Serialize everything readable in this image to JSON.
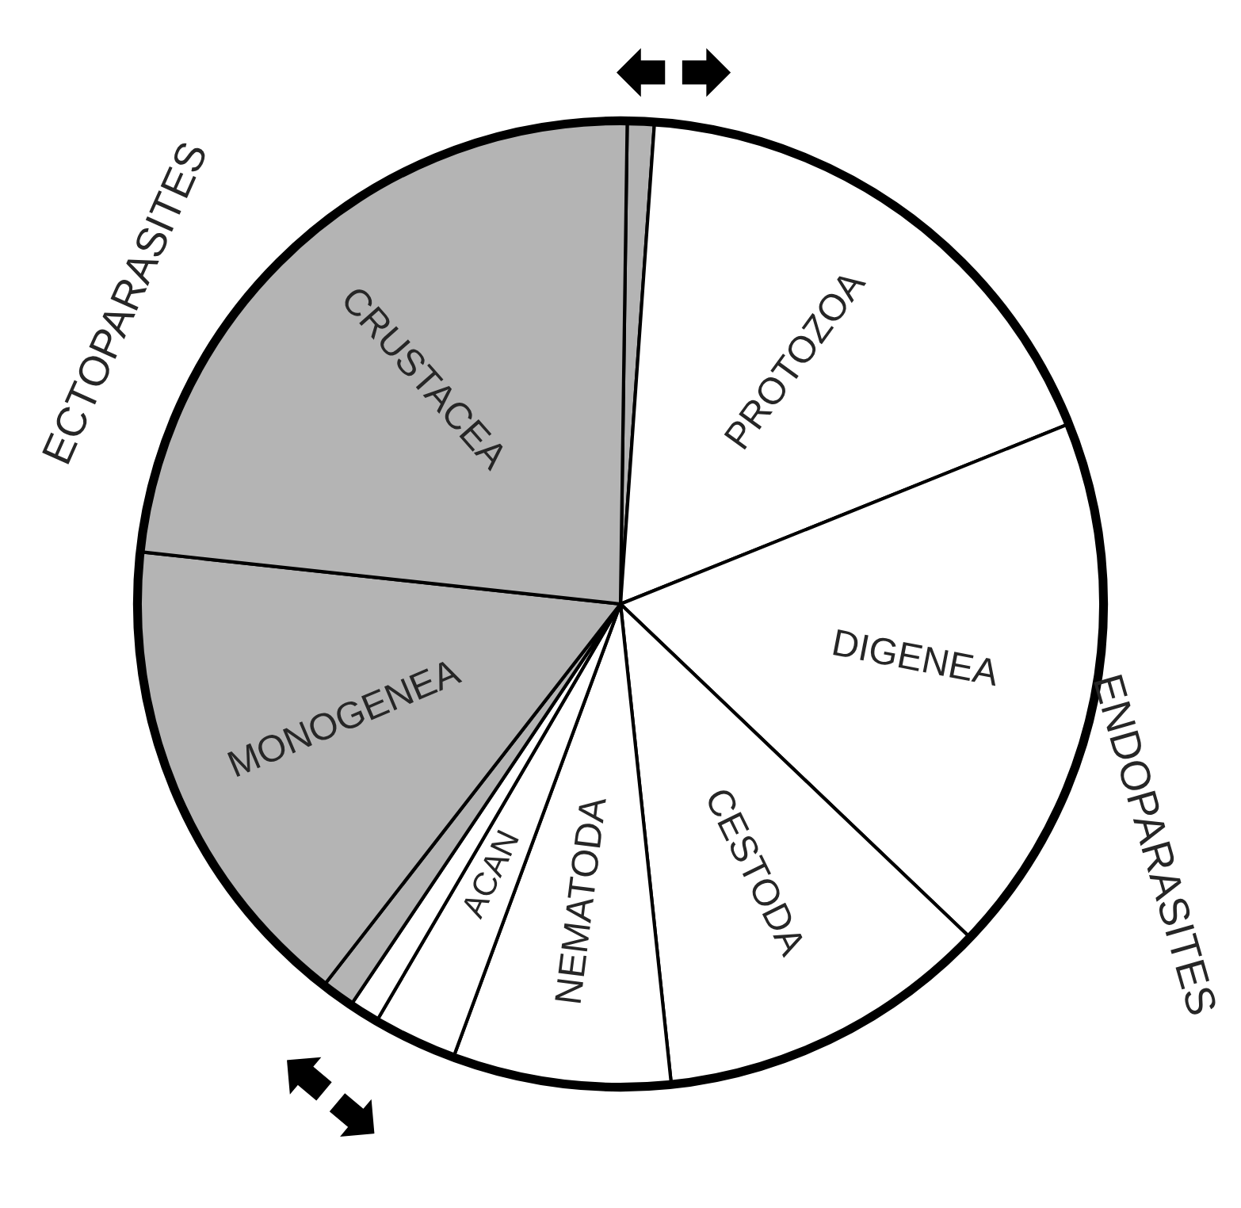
{
  "chart_data": {
    "type": "pie",
    "categories": [
      null,
      "PROTOZOA",
      "DIGENEA",
      "CESTODA",
      "NEMATODA",
      "ACAN",
      null,
      null,
      "MONOGENEA",
      "CRUSTACEA"
    ],
    "values": [
      0.9,
      17.8,
      18.2,
      11.2,
      7.3,
      2.8,
      1.0,
      1.1,
      16.2,
      23.5
    ],
    "colors": [
      "#b4b4b4",
      "#ffffff",
      "#ffffff",
      "#ffffff",
      "#ffffff",
      "#ffffff",
      "#ffffff",
      "#b4b4b4",
      "#b4b4b4",
      "#b4b4b4"
    ],
    "annotations": [
      "ECTOPARASITES",
      "ENDOPARASITES"
    ]
  }
}
